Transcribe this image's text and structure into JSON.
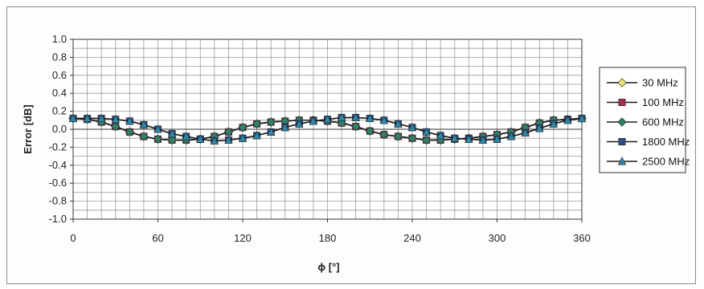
{
  "chart_data": {
    "type": "line",
    "title": "",
    "xlabel": "ϕ [°]",
    "ylabel": "Error [dB]",
    "xlim": [
      0,
      360
    ],
    "ylim": [
      -1.0,
      1.0
    ],
    "x_ticks": [
      0,
      60,
      120,
      180,
      240,
      300,
      360
    ],
    "x_tick_labels": [
      "0",
      "60",
      "120",
      "180",
      "240",
      "300",
      "360"
    ],
    "y_ticks": [
      1.0,
      0.8,
      0.6,
      0.4,
      0.2,
      0.0,
      -0.2,
      -0.4,
      -0.6,
      -0.8,
      -1.0
    ],
    "y_tick_labels": [
      "1.0",
      "0.8",
      "0.6",
      "0.4",
      "0.2",
      "0.0",
      "-0.2",
      "-0.4",
      "-0.6",
      "-0.8",
      "-1.0"
    ],
    "x_grid_step": 10,
    "y_grid_step": 0.1,
    "grid": true,
    "legend_position": "right",
    "x": [
      0,
      10,
      20,
      30,
      40,
      50,
      60,
      70,
      80,
      90,
      100,
      110,
      120,
      130,
      140,
      150,
      160,
      170,
      180,
      190,
      200,
      210,
      220,
      230,
      240,
      250,
      260,
      270,
      280,
      290,
      300,
      310,
      320,
      330,
      340,
      350,
      360
    ],
    "series": [
      {
        "name": "30 MHz",
        "marker": "diamond",
        "color": "#e8e27a",
        "values": [
          0.12,
          0.11,
          0.08,
          0.03,
          -0.03,
          -0.08,
          -0.11,
          -0.12,
          -0.12,
          -0.11,
          -0.08,
          -0.03,
          0.02,
          0.06,
          0.08,
          0.09,
          0.1,
          0.1,
          0.09,
          0.07,
          0.03,
          -0.02,
          -0.06,
          -0.08,
          -0.1,
          -0.12,
          -0.12,
          -0.11,
          -0.1,
          -0.08,
          -0.06,
          -0.03,
          0.02,
          0.07,
          0.1,
          0.11,
          0.12
        ]
      },
      {
        "name": "100 MHz",
        "marker": "square",
        "color": "#a0324a",
        "values": [
          0.12,
          0.11,
          0.08,
          0.03,
          -0.03,
          -0.08,
          -0.11,
          -0.12,
          -0.12,
          -0.11,
          -0.08,
          -0.03,
          0.02,
          0.06,
          0.08,
          0.09,
          0.1,
          0.1,
          0.09,
          0.07,
          0.03,
          -0.02,
          -0.06,
          -0.08,
          -0.1,
          -0.12,
          -0.12,
          -0.11,
          -0.1,
          -0.08,
          -0.06,
          -0.03,
          0.02,
          0.07,
          0.1,
          0.11,
          0.12
        ]
      },
      {
        "name": "600 MHz",
        "marker": "diamond",
        "color": "#2f7f6a",
        "values": [
          0.12,
          0.11,
          0.08,
          0.03,
          -0.03,
          -0.08,
          -0.11,
          -0.12,
          -0.12,
          -0.11,
          -0.08,
          -0.03,
          0.02,
          0.06,
          0.08,
          0.09,
          0.1,
          0.1,
          0.09,
          0.07,
          0.03,
          -0.02,
          -0.06,
          -0.08,
          -0.1,
          -0.12,
          -0.12,
          -0.11,
          -0.1,
          -0.08,
          -0.06,
          -0.03,
          0.02,
          0.07,
          0.1,
          0.11,
          0.12
        ]
      },
      {
        "name": "1800 MHz",
        "marker": "square",
        "color": "#2c4f86",
        "values": [
          0.12,
          0.12,
          0.12,
          0.11,
          0.09,
          0.05,
          0.0,
          -0.05,
          -0.08,
          -0.11,
          -0.13,
          -0.12,
          -0.1,
          -0.07,
          -0.03,
          0.02,
          0.06,
          0.09,
          0.11,
          0.13,
          0.13,
          0.12,
          0.1,
          0.06,
          0.02,
          -0.03,
          -0.07,
          -0.1,
          -0.11,
          -0.12,
          -0.11,
          -0.08,
          -0.04,
          0.01,
          0.06,
          0.1,
          0.12
        ]
      },
      {
        "name": "2500 MHz",
        "marker": "triangle",
        "color": "#2f87a8",
        "values": [
          0.12,
          0.12,
          0.12,
          0.11,
          0.09,
          0.05,
          0.0,
          -0.05,
          -0.08,
          -0.11,
          -0.13,
          -0.12,
          -0.1,
          -0.07,
          -0.03,
          0.02,
          0.06,
          0.09,
          0.11,
          0.13,
          0.13,
          0.12,
          0.1,
          0.06,
          0.02,
          -0.03,
          -0.07,
          -0.1,
          -0.11,
          -0.12,
          -0.11,
          -0.08,
          -0.04,
          0.01,
          0.06,
          0.1,
          0.12
        ]
      }
    ]
  }
}
